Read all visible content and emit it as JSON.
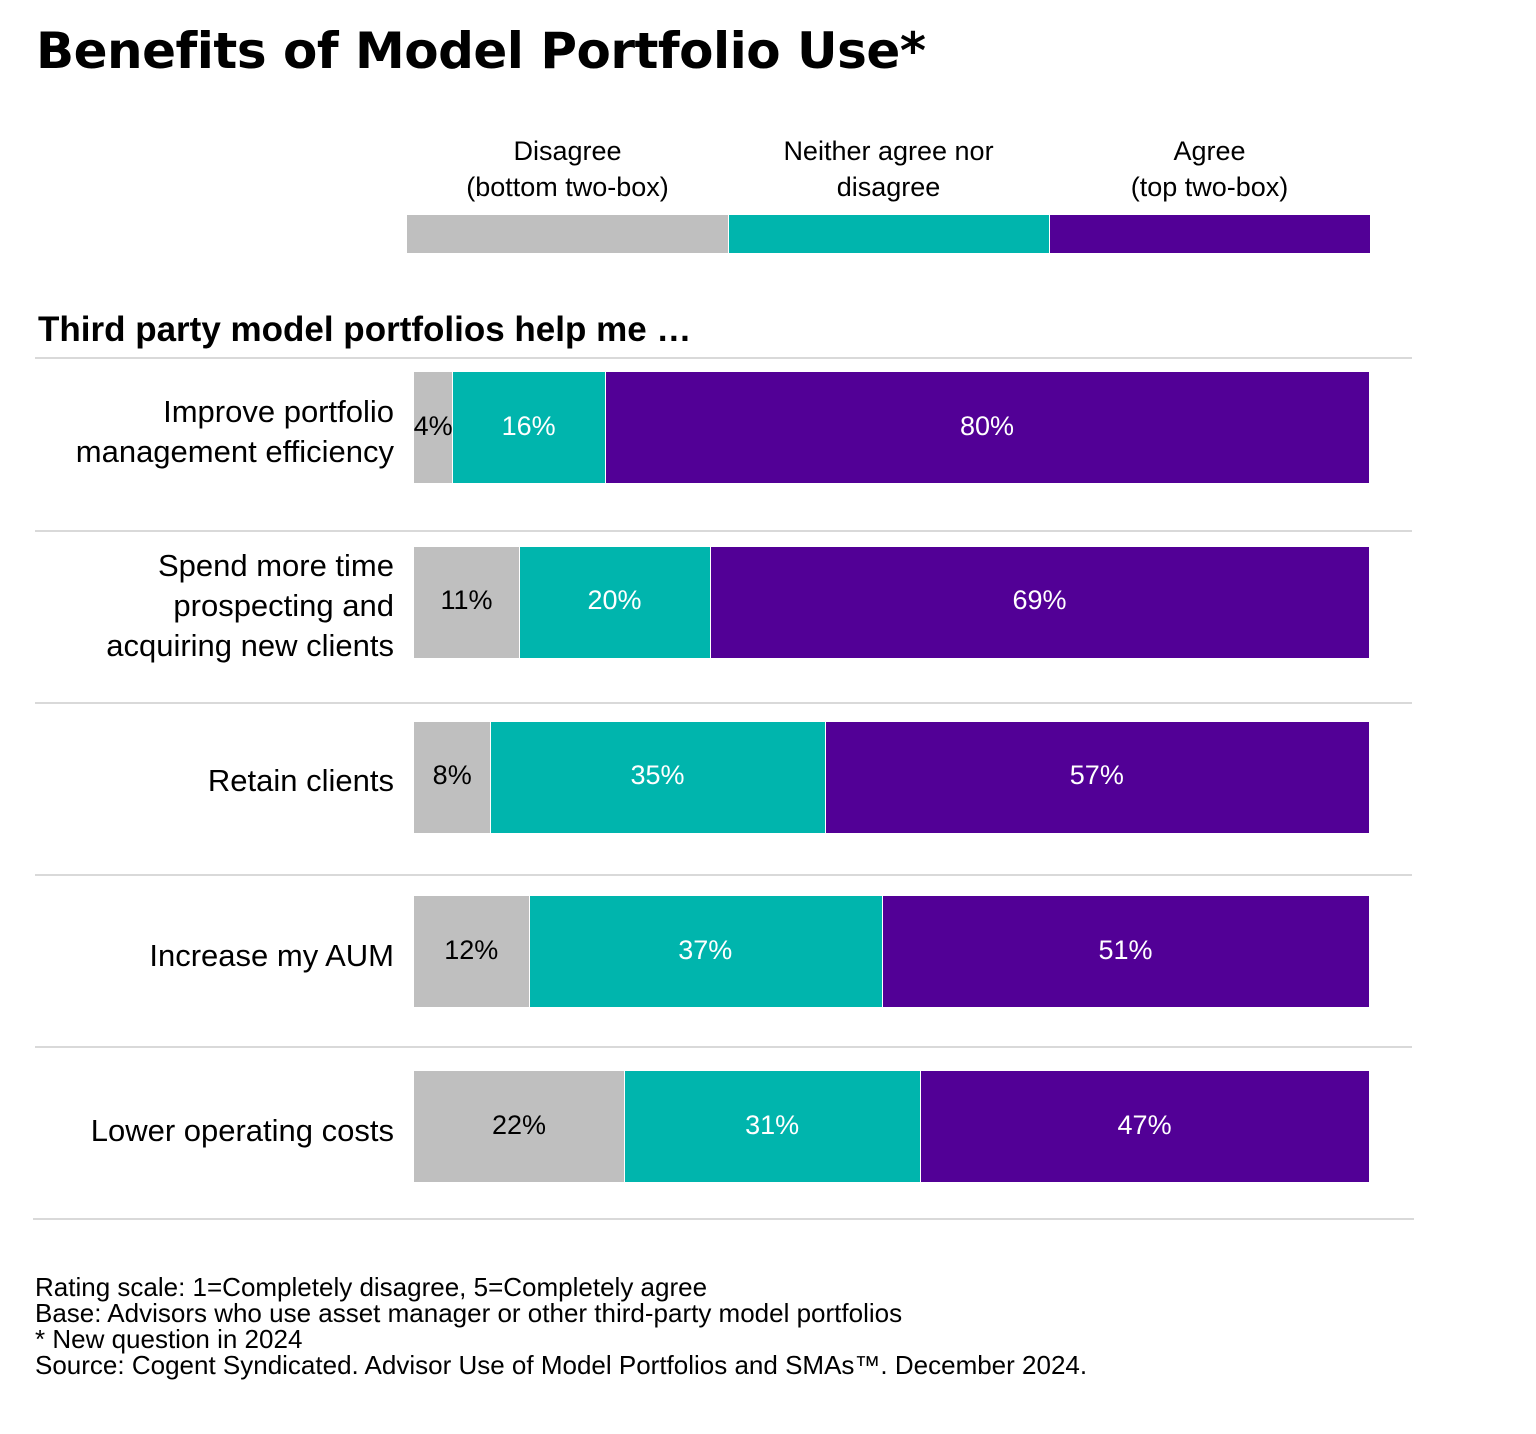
{
  "colors": {
    "disagree": "#bfbfbf",
    "neutral": "#00b5ad",
    "agree": "#520096",
    "label_on_light": "#000000",
    "label_on_dark": "#ffffff"
  },
  "chart_data": {
    "type": "bar",
    "orientation": "horizontal",
    "stacked": true,
    "title": "Benefits of Model Portfolio Use*",
    "subtitle": "Third party model portfolios help me …",
    "legend_placement": "top",
    "categories": [
      [
        "Improve portfolio",
        "management efficiency"
      ],
      [
        "Spend more time",
        "prospecting and",
        "acquiring new clients"
      ],
      [
        "Retain clients"
      ],
      [
        "Increase my AUM"
      ],
      [
        "Lower operating costs"
      ]
    ],
    "series": [
      {
        "name": "Disagree\n(bottom two-box)",
        "values": [
          4,
          11,
          8,
          12,
          22
        ]
      },
      {
        "name": "Neither agree nor\ndisagree",
        "values": [
          16,
          20,
          35,
          37,
          31
        ]
      },
      {
        "name": "Agree\n(top two-box)",
        "values": [
          80,
          69,
          57,
          51,
          47
        ]
      }
    ],
    "value_format": "%",
    "xlim": [
      0,
      100
    ]
  },
  "footer": {
    "lines": [
      "Rating scale: 1=Completely disagree, 5=Completely agree",
      "Base: Advisors who use asset manager or other third-party model portfolios",
      "* New question in 2024",
      "Source: Cogent Syndicated. Advisor Use of Model Portfolios and SMAs™. December 2024."
    ]
  }
}
